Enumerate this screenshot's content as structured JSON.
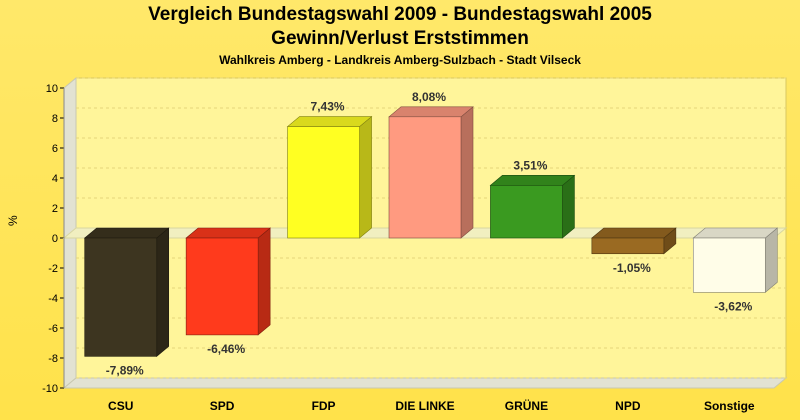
{
  "chart_data": {
    "type": "bar",
    "title": "Vergleich Bundestagswahl 2009 - Bundestagswahl 2005",
    "title2": "Gewinn/Verlust Erststimmen",
    "subtitle": "Wahlkreis Amberg - Landkreis Amberg-Sulzbach - Stadt Vilseck",
    "ylabel": "%",
    "xlabel": "",
    "ylim": [
      -10,
      10
    ],
    "ytick_step": 2,
    "grid": true,
    "categories": [
      "CSU",
      "SPD",
      "FDP",
      "DIE LINKE",
      "GRÜNE",
      "NPD",
      "Sonstige"
    ],
    "values": [
      -7.89,
      -6.46,
      7.43,
      8.08,
      3.51,
      -1.05,
      -3.62
    ],
    "value_labels": [
      "-7,89%",
      "-6,46%",
      "7,43%",
      "8,08%",
      "3,51%",
      "-1,05%",
      "-3,62%"
    ],
    "colors": [
      "#3d3520",
      "#ff3a1c",
      "#ffff22",
      "#ff9a80",
      "#3a9a20",
      "#9a6a22",
      "#fffde8"
    ]
  }
}
